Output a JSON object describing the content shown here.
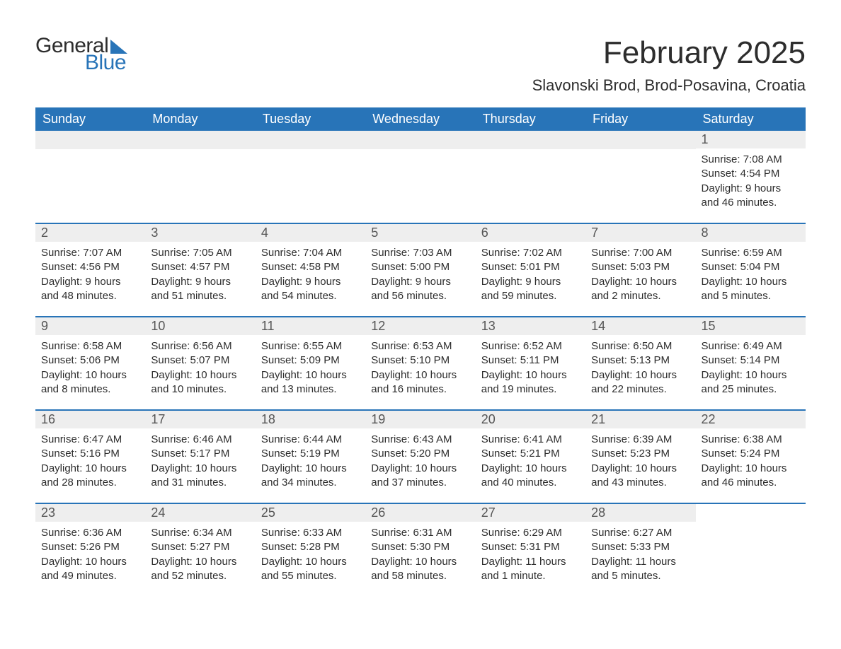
{
  "brand": {
    "general": "General",
    "blue": "Blue",
    "accent_color": "#2874b8"
  },
  "title": "February 2025",
  "subtitle": "Slavonski Brod, Brod-Posavina, Croatia",
  "weekdays": [
    "Sunday",
    "Monday",
    "Tuesday",
    "Wednesday",
    "Thursday",
    "Friday",
    "Saturday"
  ],
  "colors": {
    "header_bg": "#2874b8",
    "header_text": "#ffffff",
    "daynum_bg": "#eeeeee",
    "daynum_text": "#555555",
    "body_text": "#2d2d2d",
    "page_bg": "#ffffff"
  },
  "weeks": [
    [
      null,
      null,
      null,
      null,
      null,
      null,
      {
        "n": "1",
        "sunrise": "Sunrise: 7:08 AM",
        "sunset": "Sunset: 4:54 PM",
        "d1": "Daylight: 9 hours",
        "d2": "and 46 minutes."
      }
    ],
    [
      {
        "n": "2",
        "sunrise": "Sunrise: 7:07 AM",
        "sunset": "Sunset: 4:56 PM",
        "d1": "Daylight: 9 hours",
        "d2": "and 48 minutes."
      },
      {
        "n": "3",
        "sunrise": "Sunrise: 7:05 AM",
        "sunset": "Sunset: 4:57 PM",
        "d1": "Daylight: 9 hours",
        "d2": "and 51 minutes."
      },
      {
        "n": "4",
        "sunrise": "Sunrise: 7:04 AM",
        "sunset": "Sunset: 4:58 PM",
        "d1": "Daylight: 9 hours",
        "d2": "and 54 minutes."
      },
      {
        "n": "5",
        "sunrise": "Sunrise: 7:03 AM",
        "sunset": "Sunset: 5:00 PM",
        "d1": "Daylight: 9 hours",
        "d2": "and 56 minutes."
      },
      {
        "n": "6",
        "sunrise": "Sunrise: 7:02 AM",
        "sunset": "Sunset: 5:01 PM",
        "d1": "Daylight: 9 hours",
        "d2": "and 59 minutes."
      },
      {
        "n": "7",
        "sunrise": "Sunrise: 7:00 AM",
        "sunset": "Sunset: 5:03 PM",
        "d1": "Daylight: 10 hours",
        "d2": "and 2 minutes."
      },
      {
        "n": "8",
        "sunrise": "Sunrise: 6:59 AM",
        "sunset": "Sunset: 5:04 PM",
        "d1": "Daylight: 10 hours",
        "d2": "and 5 minutes."
      }
    ],
    [
      {
        "n": "9",
        "sunrise": "Sunrise: 6:58 AM",
        "sunset": "Sunset: 5:06 PM",
        "d1": "Daylight: 10 hours",
        "d2": "and 8 minutes."
      },
      {
        "n": "10",
        "sunrise": "Sunrise: 6:56 AM",
        "sunset": "Sunset: 5:07 PM",
        "d1": "Daylight: 10 hours",
        "d2": "and 10 minutes."
      },
      {
        "n": "11",
        "sunrise": "Sunrise: 6:55 AM",
        "sunset": "Sunset: 5:09 PM",
        "d1": "Daylight: 10 hours",
        "d2": "and 13 minutes."
      },
      {
        "n": "12",
        "sunrise": "Sunrise: 6:53 AM",
        "sunset": "Sunset: 5:10 PM",
        "d1": "Daylight: 10 hours",
        "d2": "and 16 minutes."
      },
      {
        "n": "13",
        "sunrise": "Sunrise: 6:52 AM",
        "sunset": "Sunset: 5:11 PM",
        "d1": "Daylight: 10 hours",
        "d2": "and 19 minutes."
      },
      {
        "n": "14",
        "sunrise": "Sunrise: 6:50 AM",
        "sunset": "Sunset: 5:13 PM",
        "d1": "Daylight: 10 hours",
        "d2": "and 22 minutes."
      },
      {
        "n": "15",
        "sunrise": "Sunrise: 6:49 AM",
        "sunset": "Sunset: 5:14 PM",
        "d1": "Daylight: 10 hours",
        "d2": "and 25 minutes."
      }
    ],
    [
      {
        "n": "16",
        "sunrise": "Sunrise: 6:47 AM",
        "sunset": "Sunset: 5:16 PM",
        "d1": "Daylight: 10 hours",
        "d2": "and 28 minutes."
      },
      {
        "n": "17",
        "sunrise": "Sunrise: 6:46 AM",
        "sunset": "Sunset: 5:17 PM",
        "d1": "Daylight: 10 hours",
        "d2": "and 31 minutes."
      },
      {
        "n": "18",
        "sunrise": "Sunrise: 6:44 AM",
        "sunset": "Sunset: 5:19 PM",
        "d1": "Daylight: 10 hours",
        "d2": "and 34 minutes."
      },
      {
        "n": "19",
        "sunrise": "Sunrise: 6:43 AM",
        "sunset": "Sunset: 5:20 PM",
        "d1": "Daylight: 10 hours",
        "d2": "and 37 minutes."
      },
      {
        "n": "20",
        "sunrise": "Sunrise: 6:41 AM",
        "sunset": "Sunset: 5:21 PM",
        "d1": "Daylight: 10 hours",
        "d2": "and 40 minutes."
      },
      {
        "n": "21",
        "sunrise": "Sunrise: 6:39 AM",
        "sunset": "Sunset: 5:23 PM",
        "d1": "Daylight: 10 hours",
        "d2": "and 43 minutes."
      },
      {
        "n": "22",
        "sunrise": "Sunrise: 6:38 AM",
        "sunset": "Sunset: 5:24 PM",
        "d1": "Daylight: 10 hours",
        "d2": "and 46 minutes."
      }
    ],
    [
      {
        "n": "23",
        "sunrise": "Sunrise: 6:36 AM",
        "sunset": "Sunset: 5:26 PM",
        "d1": "Daylight: 10 hours",
        "d2": "and 49 minutes."
      },
      {
        "n": "24",
        "sunrise": "Sunrise: 6:34 AM",
        "sunset": "Sunset: 5:27 PM",
        "d1": "Daylight: 10 hours",
        "d2": "and 52 minutes."
      },
      {
        "n": "25",
        "sunrise": "Sunrise: 6:33 AM",
        "sunset": "Sunset: 5:28 PM",
        "d1": "Daylight: 10 hours",
        "d2": "and 55 minutes."
      },
      {
        "n": "26",
        "sunrise": "Sunrise: 6:31 AM",
        "sunset": "Sunset: 5:30 PM",
        "d1": "Daylight: 10 hours",
        "d2": "and 58 minutes."
      },
      {
        "n": "27",
        "sunrise": "Sunrise: 6:29 AM",
        "sunset": "Sunset: 5:31 PM",
        "d1": "Daylight: 11 hours",
        "d2": "and 1 minute."
      },
      {
        "n": "28",
        "sunrise": "Sunrise: 6:27 AM",
        "sunset": "Sunset: 5:33 PM",
        "d1": "Daylight: 11 hours",
        "d2": "and 5 minutes."
      },
      null
    ]
  ]
}
